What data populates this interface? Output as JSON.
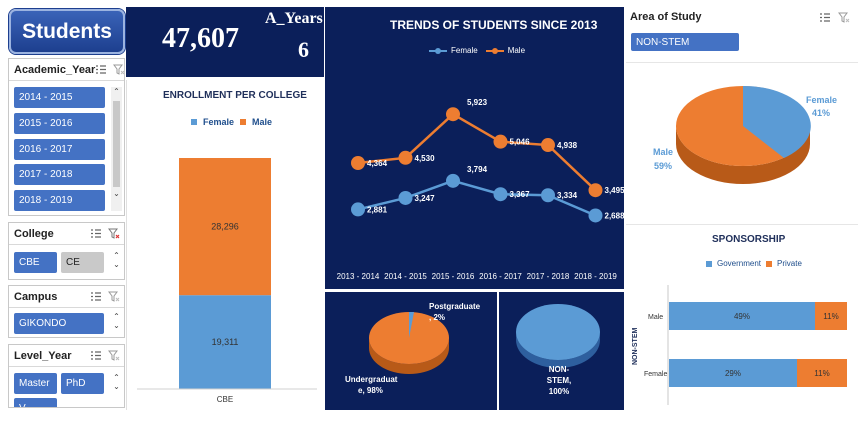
{
  "header": {
    "title": "Students"
  },
  "kpi": {
    "total": "47,607",
    "years_label": "A_Years",
    "years_value": "6"
  },
  "slicers": {
    "academic_year": {
      "title": "Academic_Year",
      "items": [
        "2014 - 2015",
        "2015 - 2016",
        "2016 - 2017",
        "2017 - 2018",
        "2018 - 2019"
      ]
    },
    "college": {
      "title": "College",
      "items": [
        "CBE",
        "CE"
      ]
    },
    "campus": {
      "title": "Campus",
      "items": [
        "GIKONDO"
      ]
    },
    "level_year": {
      "title": "Level_Year",
      "items": [
        "Master",
        "PhD",
        "V..."
      ]
    },
    "area_of_study": {
      "title": "Area of Study",
      "items": [
        "NON-STEM"
      ]
    }
  },
  "enrollment": {
    "title": "ENROLLMENT PER COLLEGE",
    "legend": [
      "Female",
      "Male"
    ],
    "chart_data": {
      "type": "bar",
      "categories": [
        "CBE"
      ],
      "series": [
        {
          "name": "Female",
          "values": [
            19311
          ],
          "label": "19,311"
        },
        {
          "name": "Male",
          "values": [
            28296
          ],
          "label": "28,296"
        }
      ]
    },
    "colors": {
      "female": "#5b9bd5",
      "male": "#ed7d31"
    }
  },
  "trends": {
    "title": "TRENDS OF STUDENTS SINCE 2013",
    "legend": [
      "Female",
      "Male"
    ],
    "chart_data": {
      "type": "line",
      "categories": [
        "2013 - 2014",
        "2014 - 2015",
        "2015 - 2016",
        "2016 - 2017",
        "2017 - 2018",
        "2018 - 2019"
      ],
      "series": [
        {
          "name": "Female",
          "values": [
            2881,
            3247,
            3794,
            3367,
            3334,
            2688
          ],
          "labels": [
            "2,881",
            "3,247",
            "3,794",
            "3,367",
            "3,334",
            "2,688"
          ]
        },
        {
          "name": "Male",
          "values": [
            4364,
            4530,
            5923,
            5046,
            4938,
            3495
          ],
          "labels": [
            "4,364",
            "4,530",
            "5,923",
            "5,046",
            "4,938",
            "3,495"
          ]
        }
      ]
    }
  },
  "level_pie": {
    "chart_data": {
      "type": "pie",
      "slices": [
        {
          "label": "Undergraduat e, 98%",
          "value": 98
        },
        {
          "label": "Postgraduate , 2%",
          "value": 2
        }
      ]
    },
    "labels": {
      "under_1": "Undergraduat",
      "under_2": "e, 98%",
      "post_1": "Postgraduate",
      "post_2": ", 2%"
    }
  },
  "stem_pie": {
    "chart_data": {
      "type": "pie",
      "slices": [
        {
          "label": "NON-STEM, 100%",
          "value": 100
        }
      ]
    },
    "labels": {
      "l1": "NON-",
      "l2": "STEM,",
      "l3": "100%"
    }
  },
  "gender_pie": {
    "chart_data": {
      "type": "pie",
      "slices": [
        {
          "label": "Female 41%",
          "value": 41
        },
        {
          "label": "Male 59%",
          "value": 59
        }
      ]
    },
    "labels": {
      "female": "Female",
      "female_pct": "41%",
      "male": "Male",
      "male_pct": "59%"
    }
  },
  "sponsorship": {
    "title": "SPONSORSHIP",
    "legend": [
      "Government",
      "Private"
    ],
    "axis_label": "NON-STEM",
    "chart_data": {
      "type": "bar",
      "categories": [
        "Male",
        "Female"
      ],
      "series": [
        {
          "name": "Government",
          "labels": [
            "49%",
            "29%"
          ]
        },
        {
          "name": "Private",
          "labels": [
            "11%",
            "11%"
          ]
        }
      ]
    }
  }
}
